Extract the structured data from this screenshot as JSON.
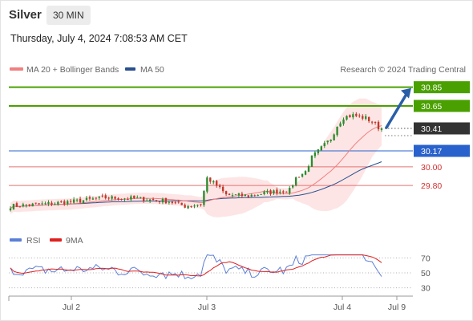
{
  "header": {
    "instrument": "Silver",
    "timeframe": "30 MIN",
    "timestamp": "Thursday, July 4, 2024 7:08:53 AM CET"
  },
  "legend": {
    "ma20": "MA 20 + Bollinger Bands",
    "ma50": "MA 50",
    "credit": "Research © 2024 Trading Central",
    "rsi": "RSI",
    "rsi_ma": "9MA"
  },
  "colors": {
    "up_candle": "#2e8b2e",
    "down_candle": "#c0392b",
    "ma20": "#f08080",
    "bollinger_fill": "#fde0e0",
    "ma50": "#2a4f8f",
    "resistance": "#4aa000",
    "pivot": "#2962cc",
    "support": "#e57373",
    "last_price": "#333333",
    "arrow": "#2a5ea8",
    "rsi": "#5b7fd6",
    "rsi_ma": "#e02020"
  },
  "chart_data": [
    {
      "type": "candlestick",
      "title": "Silver",
      "x_tick_labels": [
        "Jul 2",
        "Jul 3",
        "Jul 4",
        "Jul 9"
      ],
      "y_visible_range": [
        29.45,
        30.95
      ],
      "last_price": 30.41,
      "levels": [
        {
          "value": 30.85,
          "label": "30.85",
          "kind": "resistance"
        },
        {
          "value": 30.65,
          "label": "30.65",
          "kind": "resistance"
        },
        {
          "value": 30.41,
          "label": "30.41",
          "kind": "last"
        },
        {
          "value": 30.17,
          "label": "30.17",
          "kind": "pivot"
        },
        {
          "value": 30.0,
          "label": "30.00",
          "kind": "support"
        },
        {
          "value": 29.8,
          "label": "29.80",
          "kind": "support"
        }
      ],
      "projection": {
        "from": 30.41,
        "to": 30.85,
        "direction": "up"
      },
      "series": [
        {
          "name": "MA 20 + Bollinger Bands",
          "type": "line"
        },
        {
          "name": "MA 50",
          "type": "line"
        }
      ],
      "grid": false
    },
    {
      "type": "line",
      "y_tick_labels": [
        "70",
        "50",
        "30"
      ],
      "y_ticks": [
        70,
        50,
        30
      ],
      "series": [
        {
          "name": "RSI"
        },
        {
          "name": "9MA"
        }
      ],
      "grid": true
    }
  ]
}
